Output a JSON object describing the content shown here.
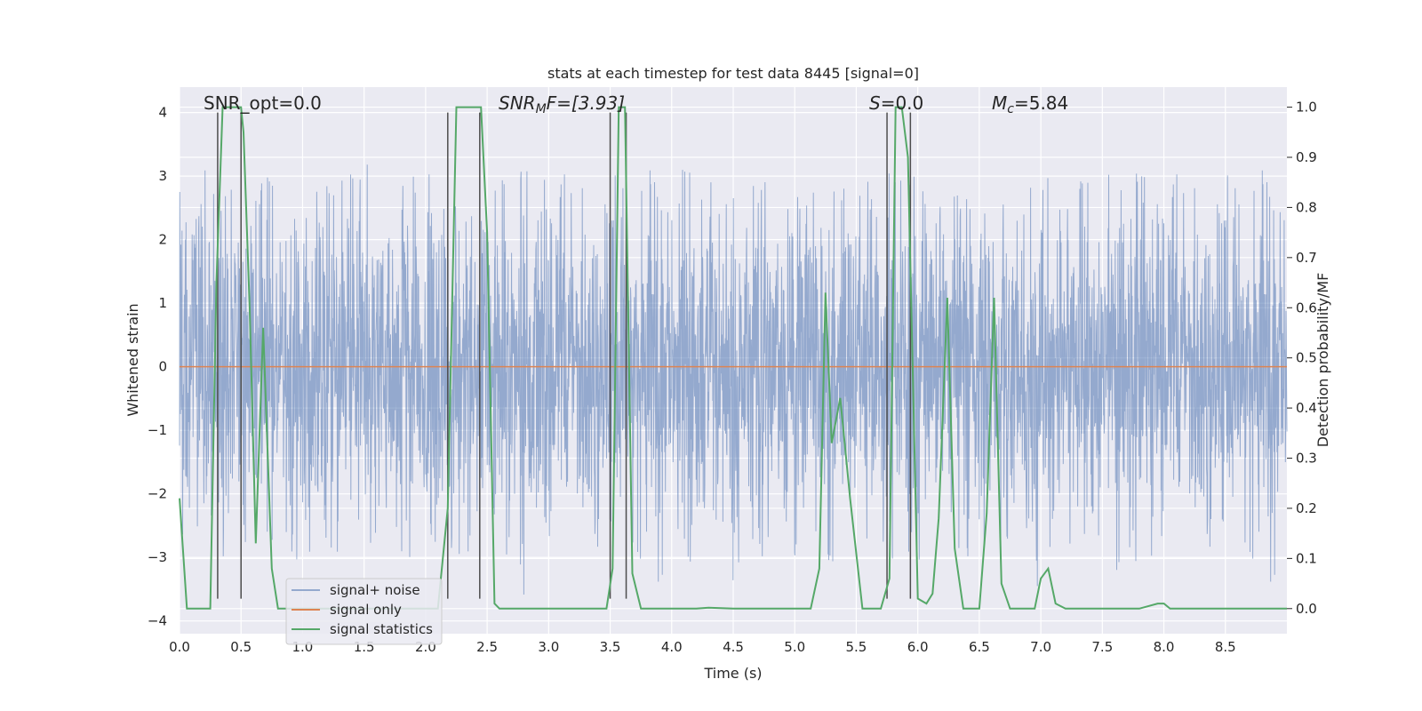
{
  "chart_data": {
    "type": "line",
    "title": "stats at each timestep for test data 8445 [signal=0]",
    "xlabel": "Time (s)",
    "ylabel": "Whitened strain",
    "y2label": "Detection probability/MF",
    "xlim": [
      0.0,
      9.0
    ],
    "ylim": [
      -4.2,
      4.4
    ],
    "y2lim": [
      -0.05,
      1.04
    ],
    "xticks": [
      "0.0",
      "0.5",
      "1.0",
      "1.5",
      "2.0",
      "2.5",
      "3.0",
      "3.5",
      "4.0",
      "4.5",
      "5.0",
      "5.5",
      "6.0",
      "6.5",
      "7.0",
      "7.5",
      "8.0",
      "8.5"
    ],
    "yticks": [
      "4",
      "3",
      "2",
      "1",
      "0",
      "−1",
      "−2",
      "−3",
      "−4"
    ],
    "y2ticks": [
      "1.0",
      "0.9",
      "0.8",
      "0.7",
      "0.6",
      "0.5",
      "0.4",
      "0.3",
      "0.2",
      "0.1",
      "0.0"
    ],
    "grid": true,
    "annotations": {
      "snr_opt": "SNR_opt=0.0",
      "snr_mf_sym": "SNR",
      "snr_mf_sub": "M",
      "snr_mf_rest": "F=[3.93]",
      "s_sym": "S",
      "s_rest": "=0.0",
      "mc_sym": "M",
      "mc_sub": "c",
      "mc_rest": "=5.84"
    },
    "legend": {
      "placement": "lower-left",
      "entries": [
        "signal+ noise",
        "signal only",
        "signal statistics"
      ]
    },
    "series": [
      {
        "name": "signal+ noise",
        "axis": "left",
        "color": "#4c72b0",
        "kind": "noise",
        "approx_amplitude": {
          "core": 1.6,
          "typical_peak": 2.7,
          "max_peak": 3.6
        }
      },
      {
        "name": "signal only",
        "axis": "left",
        "color": "#dd8452",
        "x": [
          0.0,
          9.0
        ],
        "y": [
          0.0,
          0.0
        ]
      },
      {
        "name": "signal statistics",
        "axis": "right",
        "color": "#55a868",
        "x": [
          0.0,
          0.06,
          0.25,
          0.3,
          0.35,
          0.42,
          0.5,
          0.52,
          0.57,
          0.62,
          0.68,
          0.75,
          0.8,
          0.9,
          1.0,
          1.1,
          1.2,
          1.3,
          1.4,
          1.5,
          1.6,
          1.7,
          1.8,
          1.9,
          2.0,
          2.1,
          2.18,
          2.25,
          2.3,
          2.45,
          2.5,
          2.56,
          2.6,
          2.7,
          2.8,
          2.9,
          3.0,
          3.1,
          3.2,
          3.3,
          3.4,
          3.47,
          3.52,
          3.57,
          3.62,
          3.68,
          3.75,
          3.85,
          4.0,
          4.1,
          4.2,
          4.3,
          4.5,
          4.7,
          4.9,
          5.13,
          5.2,
          5.25,
          5.3,
          5.37,
          5.45,
          5.55,
          5.7,
          5.77,
          5.82,
          5.87,
          5.92,
          6.0,
          6.07,
          6.12,
          6.17,
          6.24,
          6.3,
          6.37,
          6.44,
          6.5,
          6.56,
          6.62,
          6.68,
          6.75,
          6.85,
          6.95,
          7.0,
          7.06,
          7.12,
          7.2,
          7.4,
          7.6,
          7.8,
          7.95,
          8.0,
          8.05,
          8.3,
          8.6,
          9.0
        ],
        "y": [
          0.22,
          0.0,
          0.0,
          0.65,
          1.0,
          1.0,
          1.0,
          0.95,
          0.6,
          0.13,
          0.56,
          0.08,
          0.0,
          0.0,
          0.0,
          0.0,
          0.0,
          0.0,
          0.0,
          0.0,
          0.0,
          0.0,
          0.0,
          0.0,
          0.0,
          0.0,
          0.2,
          1.0,
          1.0,
          1.0,
          0.75,
          0.01,
          0.0,
          0.0,
          0.0,
          0.0,
          0.0,
          0.0,
          0.0,
          0.0,
          0.0,
          0.0,
          0.08,
          1.0,
          1.0,
          0.07,
          0.0,
          0.0,
          0.0,
          0.0,
          0.0,
          0.002,
          0.0,
          0.0,
          0.0,
          0.0,
          0.08,
          0.63,
          0.33,
          0.42,
          0.22,
          0.0,
          0.0,
          0.06,
          1.0,
          1.0,
          0.9,
          0.02,
          0.01,
          0.03,
          0.18,
          0.62,
          0.12,
          0.0,
          0.0,
          0.0,
          0.19,
          0.62,
          0.05,
          0.0,
          0.0,
          0.0,
          0.06,
          0.08,
          0.01,
          0.0,
          0.0,
          0.0,
          0.0,
          0.01,
          0.01,
          0.0,
          0.0,
          0.0,
          0.0
        ]
      }
    ],
    "markers": {
      "color": "#4d4d4d",
      "x": [
        0.31,
        0.5,
        2.18,
        2.44,
        3.5,
        3.63,
        5.75,
        5.94
      ]
    }
  }
}
